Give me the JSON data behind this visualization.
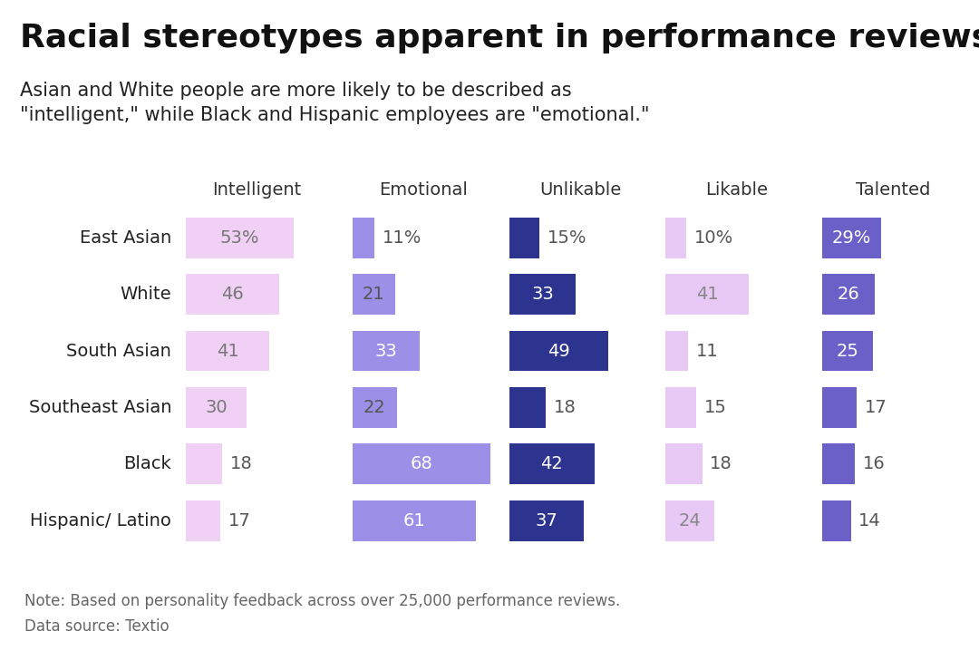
{
  "title": "Racial stereotypes apparent in performance reviews",
  "subtitle": "Asian and White people are more likely to be described as\n\"intelligent,\" while Black and Hispanic employees are \"emotional.\"",
  "note": "Note: Based on personality feedback across over 25,000 performance reviews.\nData source: Textio",
  "categories": [
    "Intelligent",
    "Emotional",
    "Unlikable",
    "Likable",
    "Talented"
  ],
  "races": [
    "East Asian",
    "White",
    "South Asian",
    "Southeast Asian",
    "Black",
    "Hispanic/ Latino"
  ],
  "data": {
    "Intelligent": [
      53,
      46,
      41,
      30,
      18,
      17
    ],
    "Emotional": [
      11,
      21,
      33,
      22,
      68,
      61
    ],
    "Unlikable": [
      15,
      33,
      49,
      18,
      42,
      37
    ],
    "Likable": [
      10,
      41,
      11,
      15,
      18,
      24
    ],
    "Talented": [
      29,
      26,
      25,
      17,
      16,
      14
    ]
  },
  "cat_colors": {
    "Intelligent": "#f0d0f5",
    "Emotional": "#9b8fe8",
    "Unlikable": "#2d3490",
    "Likable": "#e8c8f5",
    "Talented": "#6b5fc8"
  },
  "background_color": "#ffffff",
  "title_fontsize": 26,
  "subtitle_fontsize": 15,
  "note_fontsize": 12,
  "header_fontsize": 14,
  "row_label_fontsize": 14,
  "value_fontsize": 14
}
